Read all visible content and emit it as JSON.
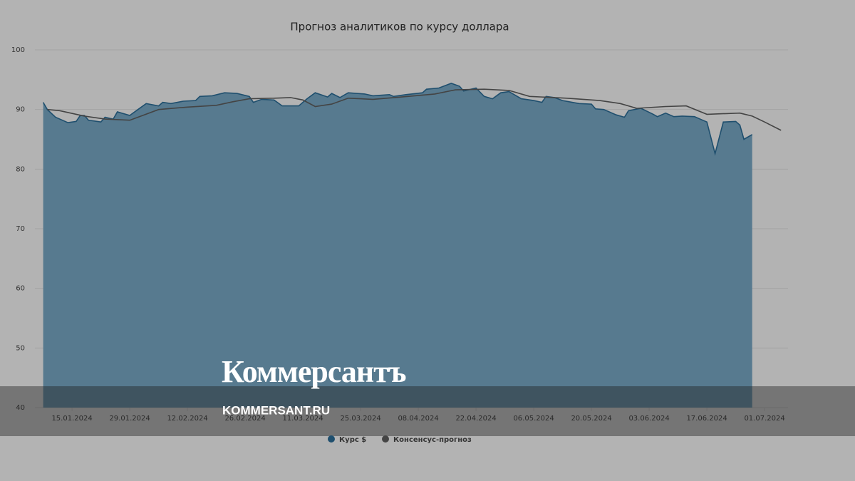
{
  "chart_data": {
    "type": "area-line",
    "title": "Прогноз аналитиков по курсу доллара",
    "xlim": [
      "06.01.2024",
      "06.07.2024"
    ],
    "xticks": [
      "15.01.2024",
      "29.01.2024",
      "12.02.2024",
      "26.02.2024",
      "11.03.2024",
      "25.03.2024",
      "08.04.2024",
      "22.04.2024",
      "06.05.2024",
      "20.05.2024",
      "03.06.2024",
      "17.06.2024",
      "01.07.2024"
    ],
    "ylim": [
      40,
      100
    ],
    "yticks": [
      40,
      50,
      60,
      70,
      80,
      90,
      100
    ],
    "grid": true,
    "series": [
      {
        "name": "Курс $",
        "kind": "area",
        "color": "#1f4f6e",
        "fill_color": "#577a8f",
        "x": [
          "08.01.2024",
          "09.01.2024",
          "11.01.2024",
          "14.01.2024",
          "16.01.2024",
          "17.01.2024",
          "18.01.2024",
          "19.01.2024",
          "22.01.2024",
          "23.01.2024",
          "25.01.2024",
          "26.01.2024",
          "29.01.2024",
          "31.01.2024",
          "02.02.2024",
          "05.02.2024",
          "06.02.2024",
          "08.02.2024",
          "11.02.2024",
          "14.02.2024",
          "15.02.2024",
          "18.02.2024",
          "21.02.2024",
          "24.02.2024",
          "27.02.2024",
          "28.02.2024",
          "01.03.2024",
          "04.03.2024",
          "06.03.2024",
          "10.03.2024",
          "12.03.2024",
          "14.03.2024",
          "17.03.2024",
          "18.03.2024",
          "20.03.2024",
          "22.03.2024",
          "26.03.2024",
          "28.03.2024",
          "01.04.2024",
          "02.04.2024",
          "05.04.2024",
          "09.04.2024",
          "10.04.2024",
          "13.04.2024",
          "16.04.2024",
          "18.04.2024",
          "19.04.2024",
          "22.04.2024",
          "24.04.2024",
          "26.04.2024",
          "28.04.2024",
          "30.04.2024",
          "03.05.2024",
          "06.05.2024",
          "08.05.2024",
          "09.05.2024",
          "11.05.2024",
          "13.05.2024",
          "17.05.2024",
          "20.05.2024",
          "21.05.2024",
          "23.05.2024",
          "26.05.2024",
          "28.05.2024",
          "29.05.2024",
          "01.06.2024",
          "04.06.2024",
          "05.06.2024",
          "07.06.2024",
          "09.06.2024",
          "11.06.2024",
          "14.06.2024",
          "16.06.2024",
          "17.06.2024",
          "19.06.2024",
          "21.06.2024",
          "24.06.2024",
          "25.06.2024",
          "26.06.2024",
          "28.06.2024"
        ],
        "values": [
          91.2,
          90.0,
          88.7,
          87.8,
          88.0,
          89.0,
          89.0,
          88.2,
          87.9,
          88.7,
          88.4,
          89.6,
          89.0,
          90.0,
          91.0,
          90.6,
          91.2,
          91.0,
          91.4,
          91.5,
          92.2,
          92.3,
          92.8,
          92.7,
          92.2,
          91.2,
          91.7,
          91.6,
          90.6,
          90.6,
          91.8,
          92.8,
          92.1,
          92.7,
          92.0,
          92.8,
          92.6,
          92.3,
          92.5,
          92.2,
          92.5,
          92.8,
          93.4,
          93.6,
          94.4,
          93.9,
          93.1,
          93.6,
          92.2,
          91.8,
          92.8,
          93.0,
          91.8,
          91.5,
          91.2,
          92.2,
          92.0,
          91.5,
          91.0,
          90.9,
          90.1,
          90.0,
          89.1,
          88.7,
          89.8,
          90.2,
          89.2,
          88.8,
          89.4,
          88.8,
          88.9,
          88.8,
          88.2,
          87.9,
          82.6,
          87.9,
          88.0,
          87.4,
          85.0,
          85.8
        ]
      },
      {
        "name": "Консенсус-прогноз",
        "kind": "line",
        "color": "#444444",
        "x": [
          "09.01.2024",
          "12.01.2024",
          "18.01.2024",
          "23.01.2024",
          "29.01.2024",
          "31.01.2024",
          "05.02.2024",
          "12.02.2024",
          "19.02.2024",
          "23.02.2024",
          "27.02.2024",
          "04.03.2024",
          "08.03.2024",
          "11.03.2024",
          "14.03.2024",
          "18.03.2024",
          "22.03.2024",
          "28.03.2024",
          "04.04.2024",
          "12.04.2024",
          "17.04.2024",
          "24.04.2024",
          "30.04.2024",
          "05.05.2024",
          "14.05.2024",
          "22.05.2024",
          "27.05.2024",
          "31.05.2024",
          "07.06.2024",
          "12.06.2024",
          "17.06.2024",
          "25.06.2024",
          "28.06.2024",
          "01.07.2024",
          "05.07.2024"
        ],
        "values": [
          90.0,
          89.8,
          88.9,
          88.4,
          88.2,
          88.7,
          90.0,
          90.4,
          90.7,
          91.3,
          91.8,
          91.9,
          92.0,
          91.6,
          90.5,
          90.9,
          91.9,
          91.7,
          92.1,
          92.6,
          93.3,
          93.4,
          93.2,
          92.2,
          91.9,
          91.5,
          91.0,
          90.2,
          90.5,
          90.6,
          89.2,
          89.4,
          88.9,
          87.9,
          86.5
        ]
      }
    ]
  },
  "watermark": {
    "logo": "Коммерсантъ",
    "url": "KOMMERSANT.RU"
  }
}
